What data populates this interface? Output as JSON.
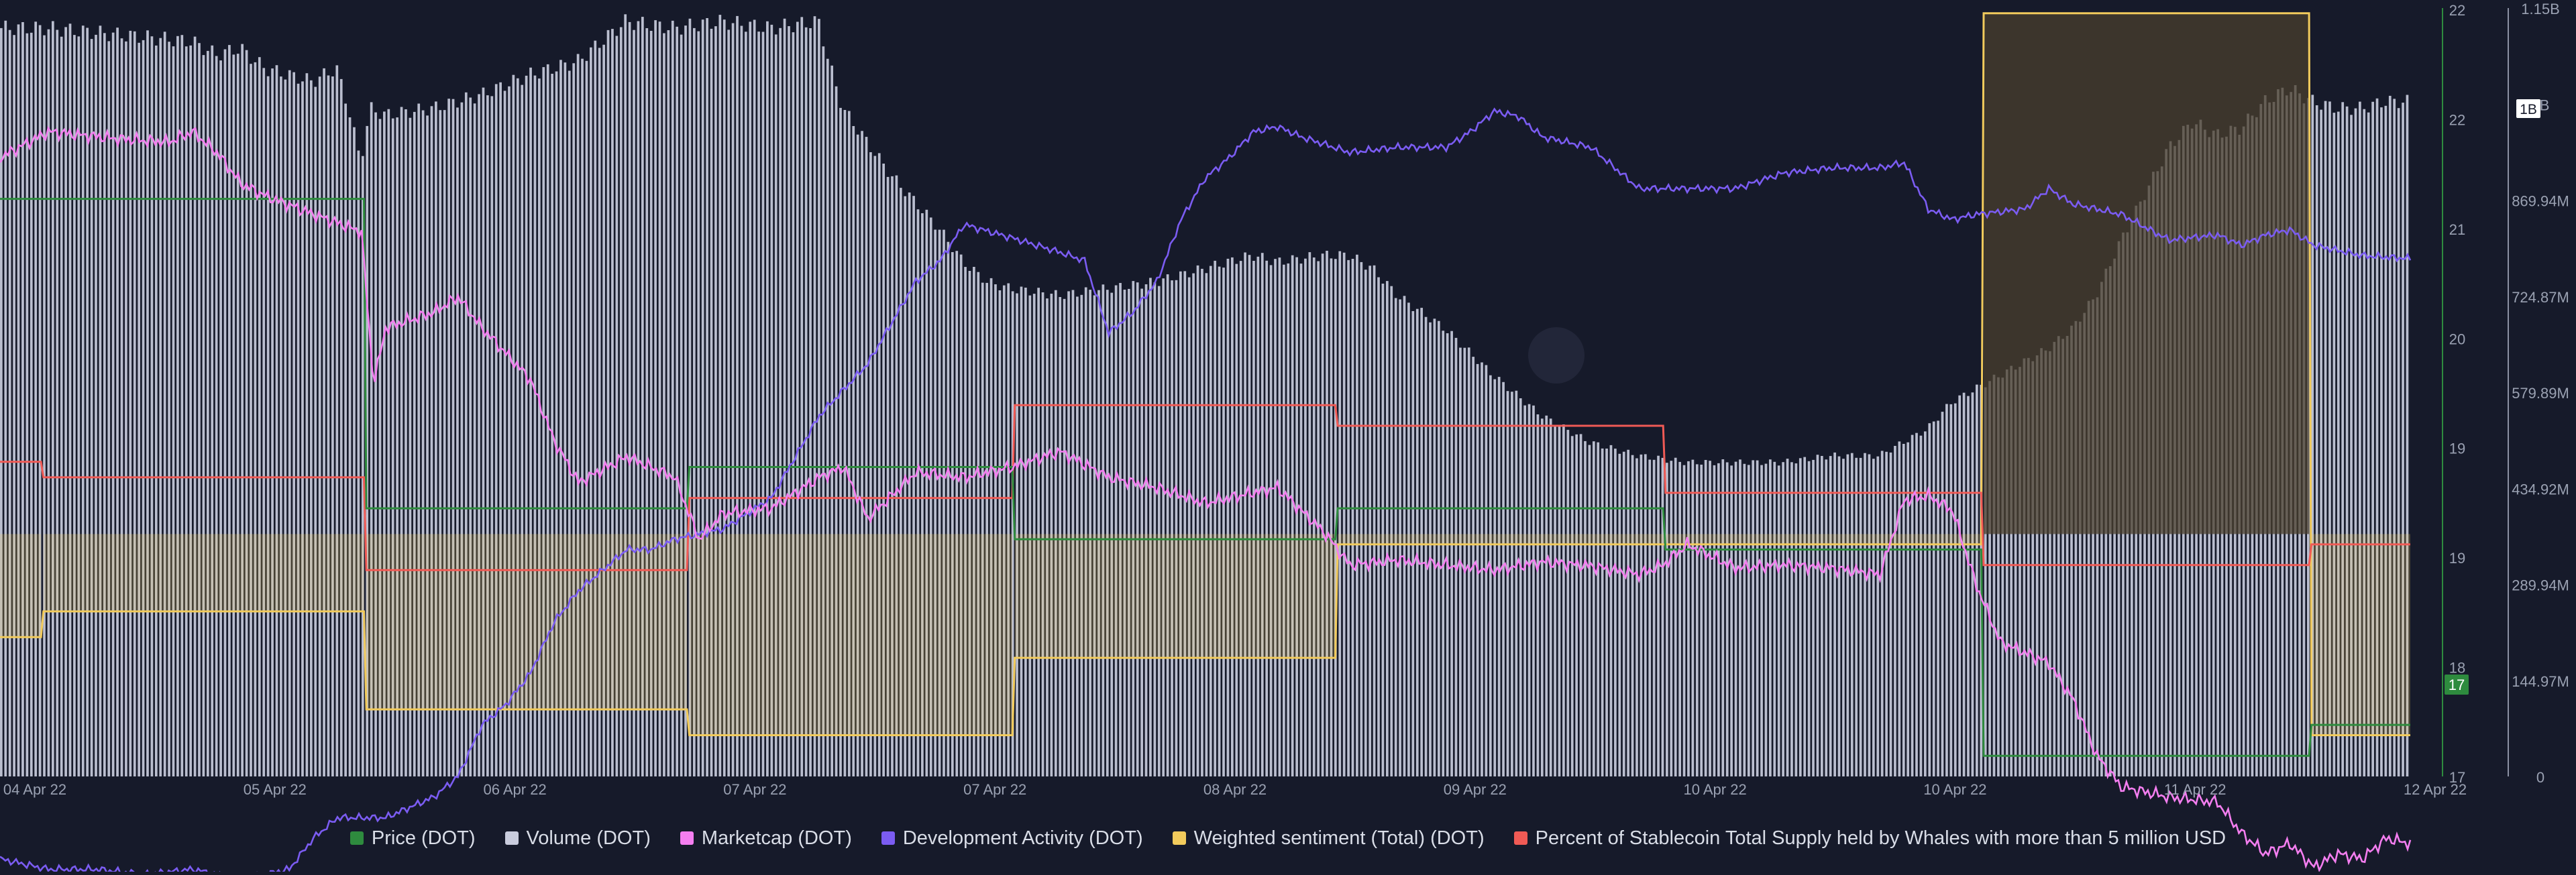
{
  "chart_data": {
    "type": "line",
    "x_ticks": [
      "04 Apr 22",
      "05 Apr 22",
      "06 Apr 22",
      "07 Apr 22",
      "07 Apr 22",
      "08 Apr 22",
      "09 Apr 22",
      "10 Apr 22",
      "10 Apr 22",
      "11 Apr 22",
      "12 Apr 22"
    ],
    "y_ticks_price": [
      "22",
      "22",
      "21",
      "20",
      "19",
      "19",
      "18",
      "17"
    ],
    "y_ticks_volume": [
      "1.15B",
      "1B",
      "869.94M",
      "724.87M",
      "579.89M",
      "434.92M",
      "289.94M",
      "144.97M",
      "0"
    ],
    "price_badge": "17",
    "volume_badge": "1B",
    "colors": {
      "background": "#161a2a",
      "price": "#2e8b3e",
      "volume": "#c9ccdd",
      "marketcap": "#f47ef0",
      "dev_activity": "#7b5cf2",
      "sentiment": "#f2cb5c",
      "stablecoin": "#f05a55"
    },
    "legend": [
      {
        "label": "Price (DOT)",
        "color": "#2e8b3e"
      },
      {
        "label": "Volume (DOT)",
        "color": "#c9ccdd"
      },
      {
        "label": "Marketcap (DOT)",
        "color": "#f47ef0"
      },
      {
        "label": "Development Activity (DOT)",
        "color": "#7b5cf2"
      },
      {
        "label": "Weighted sentiment (Total) (DOT)",
        "color": "#f2cb5c"
      },
      {
        "label": "Percent of Stablecoin Total Supply held by Whales with more than 5 million USD",
        "color": "#f05a55"
      }
    ],
    "volume_series": [
      [
        0,
        1.12
      ],
      [
        0.02,
        1.12
      ],
      [
        0.05,
        1.11
      ],
      [
        0.08,
        1.1
      ],
      [
        0.09,
        1.08
      ],
      [
        0.1,
        1.09
      ],
      [
        0.11,
        1.06
      ],
      [
        0.13,
        1.04
      ],
      [
        0.14,
        1.06
      ],
      [
        0.145,
        1.0
      ],
      [
        0.15,
        0.92
      ],
      [
        0.154,
        1.0
      ],
      [
        0.16,
        0.99
      ],
      [
        0.18,
        1.0
      ],
      [
        0.2,
        1.02
      ],
      [
        0.22,
        1.05
      ],
      [
        0.24,
        1.07
      ],
      [
        0.26,
        1.13
      ],
      [
        0.28,
        1.12
      ],
      [
        0.3,
        1.13
      ],
      [
        0.32,
        1.12
      ],
      [
        0.34,
        1.13
      ],
      [
        0.345,
        1.06
      ],
      [
        0.35,
        1.0
      ],
      [
        0.36,
        0.95
      ],
      [
        0.37,
        0.9
      ],
      [
        0.38,
        0.86
      ],
      [
        0.39,
        0.82
      ],
      [
        0.4,
        0.77
      ],
      [
        0.41,
        0.74
      ],
      [
        0.42,
        0.73
      ],
      [
        0.44,
        0.72
      ],
      [
        0.46,
        0.73
      ],
      [
        0.48,
        0.74
      ],
      [
        0.5,
        0.76
      ],
      [
        0.52,
        0.78
      ],
      [
        0.53,
        0.77
      ],
      [
        0.55,
        0.78
      ],
      [
        0.56,
        0.78
      ],
      [
        0.57,
        0.76
      ],
      [
        0.58,
        0.72
      ],
      [
        0.6,
        0.67
      ],
      [
        0.62,
        0.6
      ],
      [
        0.64,
        0.54
      ],
      [
        0.65,
        0.52
      ],
      [
        0.66,
        0.5
      ],
      [
        0.67,
        0.49
      ],
      [
        0.68,
        0.48
      ],
      [
        0.7,
        0.47
      ],
      [
        0.72,
        0.47
      ],
      [
        0.74,
        0.47
      ],
      [
        0.76,
        0.48
      ],
      [
        0.78,
        0.48
      ],
      [
        0.8,
        0.52
      ],
      [
        0.81,
        0.56
      ],
      [
        0.82,
        0.58
      ],
      [
        0.83,
        0.6
      ],
      [
        0.84,
        0.62
      ],
      [
        0.85,
        0.64
      ],
      [
        0.86,
        0.67
      ],
      [
        0.87,
        0.72
      ],
      [
        0.875,
        0.76
      ],
      [
        0.88,
        0.8
      ],
      [
        0.89,
        0.87
      ],
      [
        0.9,
        0.94
      ],
      [
        0.91,
        0.98
      ],
      [
        0.92,
        0.96
      ],
      [
        0.93,
        0.97
      ],
      [
        0.94,
        1.01
      ],
      [
        0.95,
        1.03
      ],
      [
        0.955,
        1.02
      ],
      [
        0.96,
        1.01
      ],
      [
        0.97,
        1.0
      ],
      [
        0.98,
        1.0
      ],
      [
        0.99,
        1.01
      ],
      [
        1.0,
        1.01
      ]
    ],
    "marketcap_series": [
      [
        0,
        22.7
      ],
      [
        0.02,
        22.95
      ],
      [
        0.05,
        22.88
      ],
      [
        0.07,
        22.85
      ],
      [
        0.08,
        22.95
      ],
      [
        0.09,
        22.75
      ],
      [
        0.1,
        22.45
      ],
      [
        0.11,
        22.33
      ],
      [
        0.13,
        22.15
      ],
      [
        0.15,
        21.98
      ],
      [
        0.155,
        20.5
      ],
      [
        0.16,
        21.05
      ],
      [
        0.18,
        21.2
      ],
      [
        0.19,
        21.35
      ],
      [
        0.2,
        21.05
      ],
      [
        0.22,
        20.55
      ],
      [
        0.23,
        19.95
      ],
      [
        0.24,
        19.55
      ],
      [
        0.26,
        19.8
      ],
      [
        0.28,
        19.6
      ],
      [
        0.29,
        19.0
      ],
      [
        0.3,
        19.25
      ],
      [
        0.32,
        19.3
      ],
      [
        0.34,
        19.6
      ],
      [
        0.35,
        19.7
      ],
      [
        0.36,
        19.2
      ],
      [
        0.38,
        19.65
      ],
      [
        0.4,
        19.6
      ],
      [
        0.42,
        19.7
      ],
      [
        0.44,
        19.85
      ],
      [
        0.46,
        19.6
      ],
      [
        0.48,
        19.5
      ],
      [
        0.5,
        19.35
      ],
      [
        0.52,
        19.45
      ],
      [
        0.53,
        19.5
      ],
      [
        0.55,
        19.05
      ],
      [
        0.56,
        18.75
      ],
      [
        0.58,
        18.8
      ],
      [
        0.6,
        18.75
      ],
      [
        0.62,
        18.7
      ],
      [
        0.64,
        18.78
      ],
      [
        0.66,
        18.74
      ],
      [
        0.68,
        18.66
      ],
      [
        0.69,
        18.75
      ],
      [
        0.7,
        18.95
      ],
      [
        0.72,
        18.72
      ],
      [
        0.74,
        18.75
      ],
      [
        0.76,
        18.72
      ],
      [
        0.78,
        18.66
      ],
      [
        0.79,
        19.38
      ],
      [
        0.8,
        19.42
      ],
      [
        0.81,
        19.28
      ],
      [
        0.82,
        18.55
      ],
      [
        0.83,
        18.0
      ],
      [
        0.84,
        17.9
      ],
      [
        0.85,
        17.8
      ],
      [
        0.86,
        17.45
      ],
      [
        0.87,
        16.9
      ],
      [
        0.88,
        16.6
      ],
      [
        0.9,
        16.5
      ],
      [
        0.92,
        16.45
      ],
      [
        0.93,
        16.15
      ],
      [
        0.94,
        15.95
      ],
      [
        0.95,
        16.05
      ],
      [
        0.96,
        15.82
      ],
      [
        0.97,
        15.95
      ],
      [
        0.98,
        15.9
      ],
      [
        0.99,
        16.1
      ],
      [
        1.0,
        16.05
      ]
    ],
    "dev_activity_series": [
      [
        0,
        15.9
      ],
      [
        0.02,
        15.8
      ],
      [
        0.04,
        15.8
      ],
      [
        0.06,
        15.75
      ],
      [
        0.08,
        15.8
      ],
      [
        0.1,
        15.7
      ],
      [
        0.12,
        15.8
      ],
      [
        0.13,
        16.1
      ],
      [
        0.14,
        16.3
      ],
      [
        0.16,
        16.3
      ],
      [
        0.18,
        16.5
      ],
      [
        0.19,
        16.7
      ],
      [
        0.2,
        17.2
      ],
      [
        0.21,
        17.4
      ],
      [
        0.22,
        17.7
      ],
      [
        0.23,
        18.2
      ],
      [
        0.24,
        18.5
      ],
      [
        0.25,
        18.7
      ],
      [
        0.26,
        18.9
      ],
      [
        0.27,
        18.9
      ],
      [
        0.28,
        19.0
      ],
      [
        0.3,
        19.1
      ],
      [
        0.32,
        19.4
      ],
      [
        0.33,
        19.8
      ],
      [
        0.34,
        20.2
      ],
      [
        0.36,
        20.7
      ],
      [
        0.38,
        21.5
      ],
      [
        0.39,
        21.7
      ],
      [
        0.4,
        22.05
      ],
      [
        0.42,
        21.92
      ],
      [
        0.44,
        21.78
      ],
      [
        0.45,
        21.7
      ],
      [
        0.46,
        21.0
      ],
      [
        0.47,
        21.2
      ],
      [
        0.48,
        21.5
      ],
      [
        0.49,
        22.1
      ],
      [
        0.5,
        22.5
      ],
      [
        0.51,
        22.7
      ],
      [
        0.52,
        22.95
      ],
      [
        0.53,
        23.0
      ],
      [
        0.54,
        22.9
      ],
      [
        0.56,
        22.75
      ],
      [
        0.58,
        22.8
      ],
      [
        0.6,
        22.8
      ],
      [
        0.61,
        22.95
      ],
      [
        0.62,
        23.15
      ],
      [
        0.63,
        23.1
      ],
      [
        0.64,
        22.9
      ],
      [
        0.66,
        22.8
      ],
      [
        0.68,
        22.4
      ],
      [
        0.7,
        22.4
      ],
      [
        0.72,
        22.4
      ],
      [
        0.74,
        22.55
      ],
      [
        0.76,
        22.6
      ],
      [
        0.78,
        22.6
      ],
      [
        0.79,
        22.65
      ],
      [
        0.8,
        22.2
      ],
      [
        0.81,
        22.1
      ],
      [
        0.82,
        22.15
      ],
      [
        0.84,
        22.2
      ],
      [
        0.85,
        22.4
      ],
      [
        0.86,
        22.25
      ],
      [
        0.88,
        22.15
      ],
      [
        0.9,
        21.9
      ],
      [
        0.92,
        21.95
      ],
      [
        0.93,
        21.85
      ],
      [
        0.94,
        21.95
      ],
      [
        0.95,
        22.0
      ],
      [
        0.96,
        21.85
      ],
      [
        0.97,
        21.8
      ],
      [
        0.98,
        21.75
      ],
      [
        1.0,
        21.72
      ]
    ],
    "price_series": [
      [
        0,
        22.3
      ],
      [
        0.151,
        22.3
      ],
      [
        0.152,
        19.3
      ],
      [
        0.285,
        19.3
      ],
      [
        0.286,
        19.7
      ],
      [
        0.42,
        19.7
      ],
      [
        0.421,
        19.0
      ],
      [
        0.554,
        19.0
      ],
      [
        0.555,
        19.3
      ],
      [
        0.69,
        19.3
      ],
      [
        0.691,
        18.9
      ],
      [
        0.822,
        18.9
      ],
      [
        0.823,
        16.9
      ],
      [
        0.958,
        16.9
      ],
      [
        0.959,
        17.2
      ],
      [
        1.0,
        17.2
      ]
    ],
    "stablecoin_series": [
      [
        0,
        19.75
      ],
      [
        0.017,
        19.75
      ],
      [
        0.018,
        19.6
      ],
      [
        0.151,
        19.6
      ],
      [
        0.152,
        18.7
      ],
      [
        0.285,
        18.7
      ],
      [
        0.286,
        19.4
      ],
      [
        0.42,
        19.4
      ],
      [
        0.421,
        20.3
      ],
      [
        0.554,
        20.3
      ],
      [
        0.555,
        20.1
      ],
      [
        0.69,
        20.1
      ],
      [
        0.691,
        19.45
      ],
      [
        0.822,
        19.45
      ],
      [
        0.823,
        18.75
      ],
      [
        0.958,
        18.75
      ],
      [
        0.959,
        18.95
      ],
      [
        1.0,
        18.95
      ]
    ],
    "sentiment_series": [
      [
        0,
        18.05
      ],
      [
        0.017,
        18.05
      ],
      [
        0.018,
        18.3
      ],
      [
        0.151,
        18.3
      ],
      [
        0.152,
        17.35
      ],
      [
        0.285,
        17.35
      ],
      [
        0.286,
        17.1
      ],
      [
        0.42,
        17.1
      ],
      [
        0.421,
        17.85
      ],
      [
        0.554,
        17.85
      ],
      [
        0.555,
        18.95
      ],
      [
        0.822,
        18.95
      ],
      [
        0.823,
        24.1
      ],
      [
        0.958,
        24.1
      ],
      [
        0.959,
        17.1
      ],
      [
        1.0,
        17.1
      ]
    ],
    "sentiment_baseline": 19.05
  }
}
